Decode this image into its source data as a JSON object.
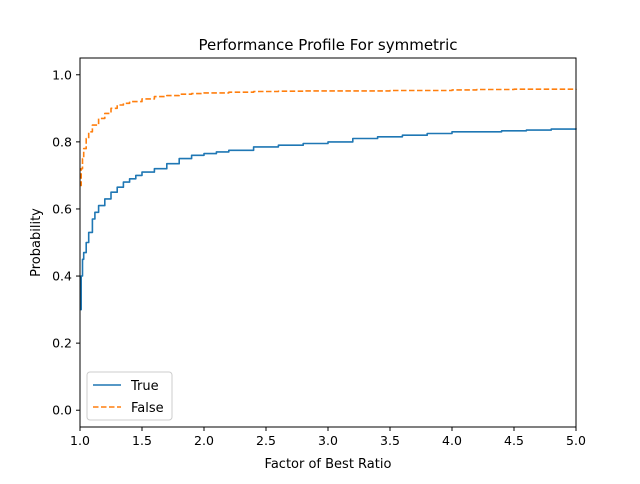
{
  "chart_data": {
    "type": "line",
    "title": "Performance Profile For symmetric",
    "xlabel": "Factor of Best Ratio",
    "ylabel": "Probability",
    "xlim": [
      1.0,
      5.0
    ],
    "ylim": [
      -0.05,
      1.05
    ],
    "xticks": [
      1.0,
      1.5,
      2.0,
      2.5,
      3.0,
      3.5,
      4.0,
      4.5,
      5.0
    ],
    "xtick_labels": [
      "1.0",
      "1.5",
      "2.0",
      "2.5",
      "3.0",
      "3.5",
      "4.0",
      "4.5",
      "5.0"
    ],
    "yticks": [
      0.0,
      0.2,
      0.4,
      0.6,
      0.8,
      1.0
    ],
    "ytick_labels": [
      "0.0",
      "0.2",
      "0.4",
      "0.6",
      "0.8",
      "1.0"
    ],
    "grid": false,
    "legend_position": "lower-left",
    "series": [
      {
        "name": "True",
        "color": "#1f77b4",
        "style": "solid",
        "x": [
          1.0,
          1.01,
          1.02,
          1.03,
          1.05,
          1.07,
          1.1,
          1.12,
          1.15,
          1.2,
          1.25,
          1.3,
          1.35,
          1.4,
          1.45,
          1.5,
          1.6,
          1.7,
          1.8,
          1.9,
          2.0,
          2.1,
          2.2,
          2.4,
          2.6,
          2.8,
          3.0,
          3.2,
          3.4,
          3.6,
          3.8,
          4.0,
          4.2,
          4.4,
          4.6,
          4.8,
          5.0
        ],
        "y": [
          0.3,
          0.4,
          0.45,
          0.47,
          0.5,
          0.53,
          0.57,
          0.59,
          0.61,
          0.63,
          0.65,
          0.665,
          0.68,
          0.69,
          0.7,
          0.71,
          0.72,
          0.735,
          0.75,
          0.76,
          0.765,
          0.77,
          0.775,
          0.785,
          0.79,
          0.795,
          0.8,
          0.81,
          0.815,
          0.82,
          0.825,
          0.83,
          0.83,
          0.833,
          0.835,
          0.838,
          0.84
        ]
      },
      {
        "name": "False",
        "color": "#ff7f0e",
        "style": "dashed",
        "x": [
          1.0,
          1.01,
          1.02,
          1.03,
          1.05,
          1.07,
          1.1,
          1.15,
          1.2,
          1.25,
          1.3,
          1.35,
          1.4,
          1.5,
          1.6,
          1.7,
          1.8,
          1.9,
          2.0,
          2.2,
          2.4,
          2.6,
          2.8,
          3.0,
          3.5,
          4.0,
          4.2,
          4.5,
          5.0
        ],
        "y": [
          0.67,
          0.72,
          0.75,
          0.78,
          0.81,
          0.83,
          0.85,
          0.87,
          0.885,
          0.9,
          0.91,
          0.915,
          0.92,
          0.928,
          0.935,
          0.938,
          0.942,
          0.944,
          0.946,
          0.948,
          0.95,
          0.951,
          0.952,
          0.952,
          0.953,
          0.955,
          0.956,
          0.957,
          0.958
        ]
      }
    ]
  }
}
